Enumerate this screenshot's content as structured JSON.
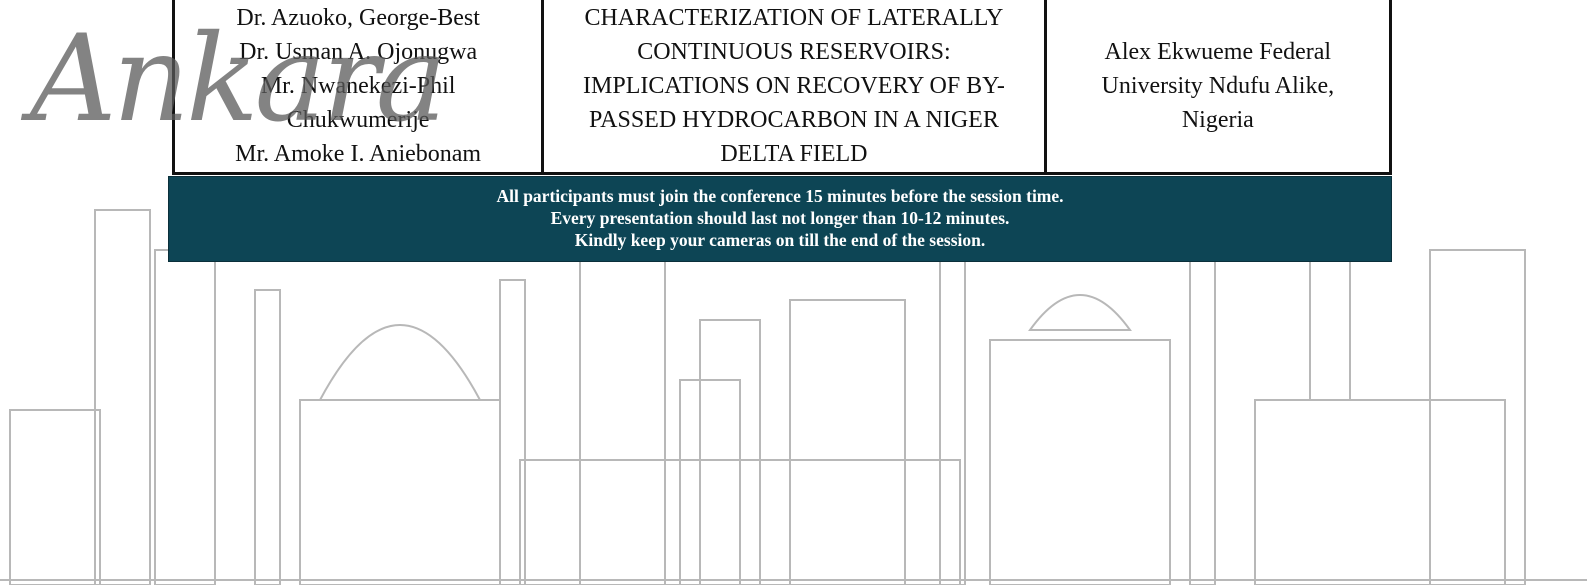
{
  "logo": "Ankara",
  "table": {
    "rows": [
      [
        [
          "Dr. Azuoko, George-Best",
          "Dr. Usman A. Ojonugwa",
          "Mr. Nwanekezi-Phil Chukwumerije",
          "Mr. Amoke I. Aniebonam"
        ],
        "CHARACTERIZATION OF LATERALLY CONTINUOUS RESERVOIRS: IMPLICATIONS ON RECOVERY OF BY-PASSED HYDROCARBON IN A NIGER DELTA FIELD",
        "Alex Ekwueme Federal University Ndufu Alike, Nigeria"
      ]
    ]
  },
  "notice": [
    "All participants must join the conference 15 minutes before the session time.",
    "Every presentation should last not longer than 10-12 minutes.",
    "Kindly keep your cameras on till the end of the session."
  ]
}
